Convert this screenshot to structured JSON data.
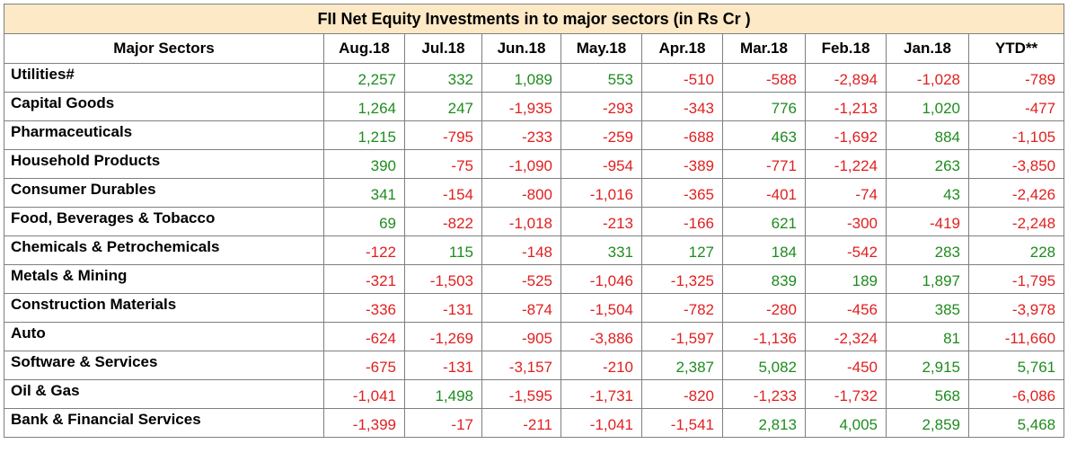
{
  "colors": {
    "positive": "#1f8b1f",
    "negative": "#e02020",
    "title_bg": "#fde9c6"
  },
  "chart_data": {
    "type": "table",
    "title": "FII Net Equity Investments in to major sectors (in Rs Cr )",
    "row_header_label": "Major Sectors",
    "columns": [
      "Aug.18",
      "Jul.18",
      "Jun.18",
      "May.18",
      "Apr.18",
      "Mar.18",
      "Feb.18",
      "Jan.18",
      "YTD**"
    ],
    "rows": [
      {
        "sector": "Utilities#",
        "values": [
          "2,257",
          "332",
          "1,089",
          "553",
          "-510",
          "-588",
          "-2,894",
          "-1,028",
          "-789"
        ]
      },
      {
        "sector": "Capital Goods",
        "values": [
          "1,264",
          "247",
          "-1,935",
          "-293",
          "-343",
          "776",
          "-1,213",
          "1,020",
          "-477"
        ]
      },
      {
        "sector": "Pharmaceuticals",
        "values": [
          "1,215",
          "-795",
          "-233",
          "-259",
          "-688",
          "463",
          "-1,692",
          "884",
          "-1,105"
        ]
      },
      {
        "sector": "Household Products",
        "values": [
          "390",
          "-75",
          "-1,090",
          "-954",
          "-389",
          "-771",
          "-1,224",
          "263",
          "-3,850"
        ]
      },
      {
        "sector": "Consumer Durables",
        "values": [
          "341",
          "-154",
          "-800",
          "-1,016",
          "-365",
          "-401",
          "-74",
          "43",
          "-2,426"
        ]
      },
      {
        "sector": "Food, Beverages & Tobacco",
        "values": [
          "69",
          "-822",
          "-1,018",
          "-213",
          "-166",
          "621",
          "-300",
          "-419",
          "-2,248"
        ]
      },
      {
        "sector": "Chemicals & Petrochemicals",
        "values": [
          "-122",
          "115",
          "-148",
          "331",
          "127",
          "184",
          "-542",
          "283",
          "228"
        ]
      },
      {
        "sector": "Metals & Mining",
        "values": [
          "-321",
          "-1,503",
          "-525",
          "-1,046",
          "-1,325",
          "839",
          "189",
          "1,897",
          "-1,795"
        ]
      },
      {
        "sector": "Construction Materials",
        "values": [
          "-336",
          "-131",
          "-874",
          "-1,504",
          "-782",
          "-280",
          "-456",
          "385",
          "-3,978"
        ]
      },
      {
        "sector": "Auto",
        "values": [
          "-624",
          "-1,269",
          "-905",
          "-3,886",
          "-1,597",
          "-1,136",
          "-2,324",
          "81",
          "-11,660"
        ]
      },
      {
        "sector": "Software & Services",
        "values": [
          "-675",
          "-131",
          "-3,157",
          "-210",
          "2,387",
          "5,082",
          "-450",
          "2,915",
          "5,761"
        ]
      },
      {
        "sector": "Oil & Gas",
        "values": [
          "-1,041",
          "1,498",
          "-1,595",
          "-1,731",
          "-820",
          "-1,233",
          "-1,732",
          "568",
          "-6,086"
        ]
      },
      {
        "sector": "Bank & Financial Services",
        "values": [
          "-1,399",
          "-17",
          "-211",
          "-1,041",
          "-1,541",
          "2,813",
          "4,005",
          "2,859",
          "5,468"
        ]
      }
    ]
  }
}
